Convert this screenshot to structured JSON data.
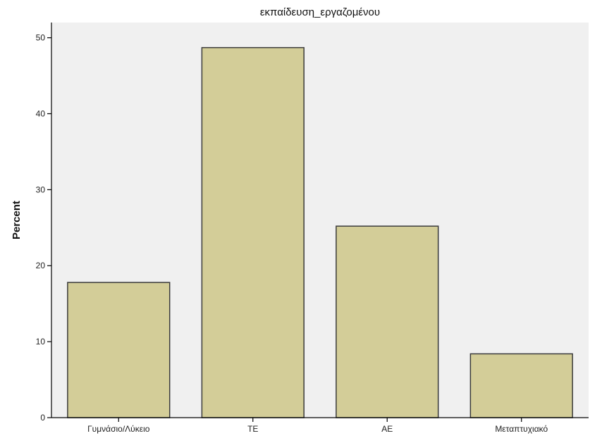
{
  "chart_data": {
    "type": "bar",
    "title": "εκπαίδευση_εργαζομένου",
    "xlabel": "",
    "ylabel": "Percent",
    "categories": [
      "Γυμνάσιο/Λύκειο",
      "ΤΕ",
      "ΑΕ",
      "Μεταπτυχιακό"
    ],
    "values": [
      17.8,
      48.7,
      25.2,
      8.4
    ],
    "ylim": [
      0,
      52
    ],
    "yticks": [
      0,
      10,
      20,
      30,
      40,
      50
    ],
    "grid": false,
    "legend": "none",
    "colors": {
      "bar_fill": "#d3cd98",
      "bar_stroke": "#3a3a3a",
      "plot_background": "#f0f0f0",
      "axis": "#000000"
    }
  }
}
